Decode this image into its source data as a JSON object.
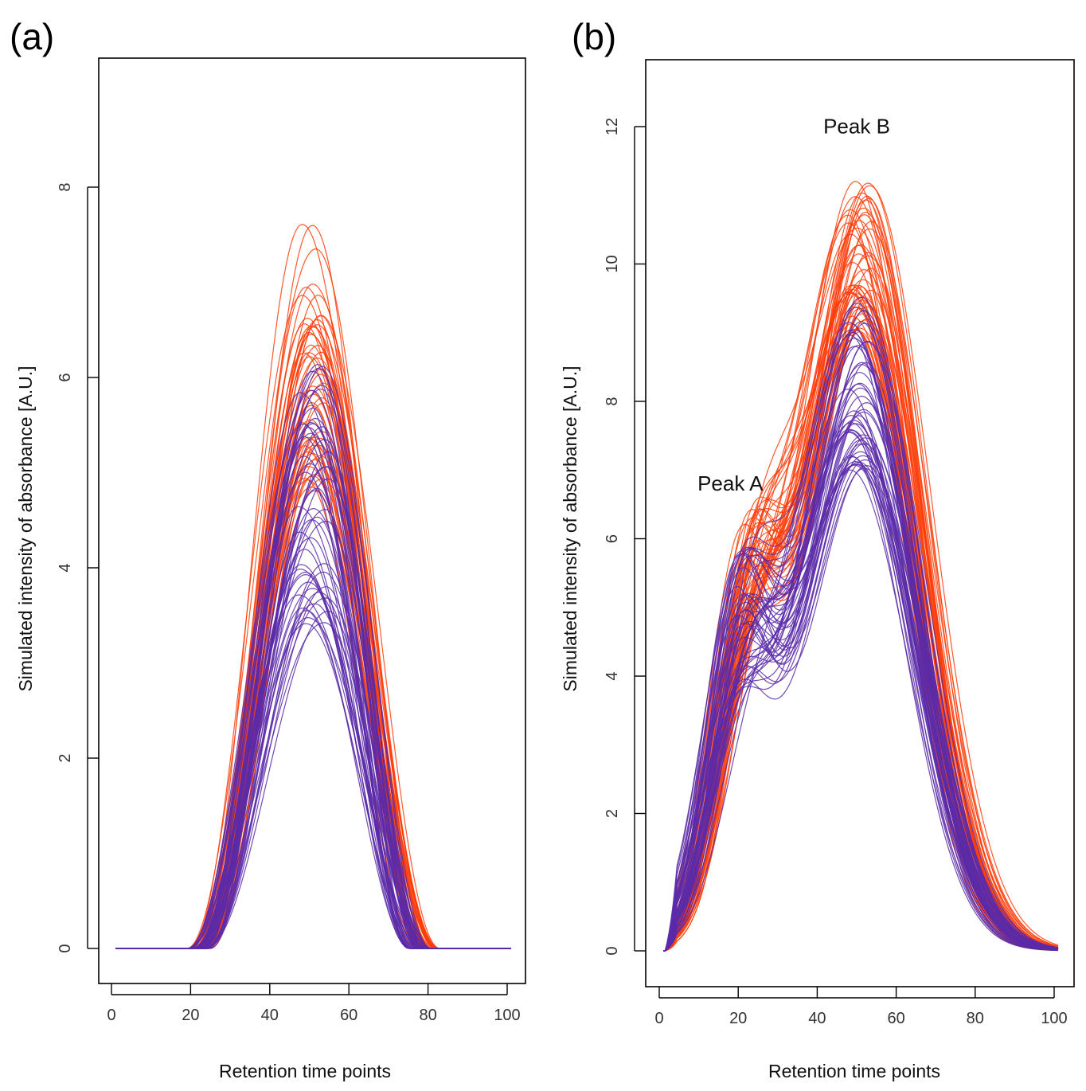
{
  "chart_data": [
    {
      "type": "line",
      "panel_label": "(a)",
      "title": "",
      "xlabel": "Retention time points",
      "ylabel": "Simulated intensity of absorbance [A.U.]",
      "xlim": [
        0,
        100
      ],
      "ylim": [
        0,
        9
      ],
      "xticks": [
        0,
        20,
        40,
        60,
        80,
        100
      ],
      "yticks": [
        0,
        2,
        4,
        6,
        8
      ],
      "x_range": [
        1,
        101
      ],
      "grid": false,
      "annotations": [],
      "series_groups": [
        {
          "color": "#ff3d0a",
          "count": 55,
          "shape": "single-peak",
          "peak_height_range": [
            4.8,
            7.7
          ],
          "peak_center_range": [
            48,
            54
          ],
          "nonzero_range": [
            19,
            83
          ]
        },
        {
          "color": "#5b2aa8",
          "count": 55,
          "shape": "single-peak",
          "peak_height_range": [
            3.4,
            6.2
          ],
          "peak_center_range": [
            47,
            55
          ],
          "nonzero_range": [
            19,
            81
          ]
        }
      ]
    },
    {
      "type": "line",
      "panel_label": "(b)",
      "title": "",
      "xlabel": "Retention time points",
      "ylabel": "Simulated intensity of absorbance [A.U.]",
      "xlim": [
        0,
        100
      ],
      "ylim": [
        0,
        13
      ],
      "xticks": [
        0,
        20,
        40,
        60,
        80,
        100
      ],
      "yticks": [
        0,
        2,
        4,
        6,
        8,
        10,
        12
      ],
      "x_range": [
        1,
        101
      ],
      "grid": false,
      "annotations": [
        {
          "text": "Peak A",
          "x": 18,
          "y": 6.7
        },
        {
          "text": "Peak B",
          "x": 50,
          "y": 11.9
        }
      ],
      "series_groups": [
        {
          "color": "#ff3d0a",
          "count": 55,
          "shape": "double-peak",
          "peakA_height_range": [
            4.6,
            6.3
          ],
          "peakA_center": 22,
          "peakB_height_range": [
            9.0,
            11.2
          ],
          "peakB_center_range": [
            48,
            54
          ]
        },
        {
          "color": "#5b2aa8",
          "count": 55,
          "shape": "double-peak",
          "peakA_height_range": [
            3.6,
            5.8
          ],
          "peakA_center": 20,
          "peakB_height_range": [
            7.0,
            9.6
          ],
          "peakB_center_range": [
            48,
            53
          ]
        }
      ]
    }
  ]
}
